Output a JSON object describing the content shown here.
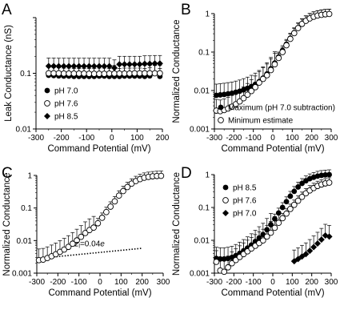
{
  "figure": {
    "chart_data": [
      {
        "panel_label": "A",
        "type": "scatter",
        "ylabel": "Leak Conductance (nS)",
        "xlabel": "Command Potential (mV)",
        "ylog": true,
        "ylim": [
          0.01,
          1
        ],
        "xlim": [
          -300,
          200
        ],
        "xticks": [
          "-300",
          "-200",
          "-100",
          "0",
          "100",
          "200"
        ],
        "yticks": [
          "0.01",
          "0.1"
        ],
        "legend": {
          "placement": "lower-left",
          "entries": [
            "pH 7.0",
            "pH 7.6",
            "pH 8.5"
          ]
        },
        "series": [
          {
            "name": "pH 7.0",
            "marker": "filled-circle",
            "x": [
              -250,
              -230,
              -210,
              -190,
              -170,
              -150,
              -130,
              -110,
              -90,
              -70,
              -50,
              -30,
              -10,
              10,
              30,
              50,
              70,
              90,
              110,
              130,
              150,
              170,
              190
            ],
            "y": [
              0.092,
              0.091,
              0.09,
              0.089,
              0.089,
              0.088,
              0.088,
              0.088,
              0.088,
              0.088,
              0.089,
              0.089,
              0.088,
              0.088,
              0.088,
              0.089,
              0.089,
              0.089,
              0.089,
              0.088,
              0.09,
              0.1,
              0.088
            ]
          },
          {
            "name": "pH 7.6",
            "marker": "open-circle",
            "x": [
              -250,
              -230,
              -210,
              -190,
              -170,
              -150,
              -130,
              -110,
              -90,
              -70,
              -50,
              -30,
              -10,
              10,
              30,
              50,
              70,
              90,
              110,
              130,
              150,
              170,
              190
            ],
            "y": [
              0.1,
              0.1,
              0.1,
              0.099,
              0.099,
              0.099,
              0.099,
              0.099,
              0.098,
              0.098,
              0.098,
              0.098,
              0.099,
              0.099,
              0.099,
              0.099,
              0.099,
              0.1,
              0.1,
              0.1,
              0.1,
              0.1,
              0.1
            ]
          },
          {
            "name": "pH 8.5",
            "marker": "filled-diamond",
            "x": [
              -250,
              -230,
              -210,
              -190,
              -170,
              -150,
              -130,
              -110,
              -90,
              -70,
              -50,
              -30,
              -10,
              10,
              30,
              50,
              70,
              90,
              110,
              130,
              150,
              170,
              190
            ],
            "y": [
              0.135,
              0.135,
              0.134,
              0.134,
              0.134,
              0.134,
              0.134,
              0.134,
              0.134,
              0.134,
              0.134,
              0.134,
              0.134,
              0.125,
              0.145,
              0.145,
              0.145,
              0.145,
              0.145,
              0.148,
              0.148,
              0.15,
              0.15
            ]
          }
        ]
      },
      {
        "panel_label": "B",
        "type": "scatter",
        "ylabel": "Normalized Conductance",
        "xlabel": "Command Potential (mV)",
        "ylog": true,
        "ylim": [
          0.001,
          1
        ],
        "xlim": [
          -300,
          300
        ],
        "xticks": [
          "-300",
          "-200",
          "-100",
          "0",
          "100",
          "200",
          "300"
        ],
        "yticks": [
          "0.001",
          "0.01",
          "0.1",
          "1"
        ],
        "legend": {
          "placement": "lower-right",
          "entries": [
            "Maximum (pH 7.0 subtraction)",
            "Minimum estimate"
          ]
        },
        "series": [
          {
            "name": "Maximum (pH 7.0 subtraction)",
            "marker": "filled-circle",
            "x": [
              -290,
              -270,
              -250,
              -230,
              -210,
              -190,
              -170,
              -150,
              -130,
              -110,
              -90,
              -70,
              -50,
              -30,
              -10,
              10,
              30,
              50,
              70,
              90,
              110,
              130,
              150,
              170,
              190,
              210,
              230,
              250,
              270,
              290
            ],
            "y": [
              0.0075,
              0.0077,
              0.0079,
              0.0082,
              0.0085,
              0.009,
              0.0096,
              0.0104,
              0.0114,
              0.0127,
              0.0145,
              0.017,
              0.021,
              0.027,
              0.037,
              0.052,
              0.075,
              0.11,
              0.16,
              0.23,
              0.32,
              0.43,
              0.55,
              0.66,
              0.76,
              0.84,
              0.9,
              0.94,
              0.97,
              0.98
            ]
          },
          {
            "name": "Minimum estimate",
            "marker": "open-circle",
            "x": [
              -290,
              -270,
              -250,
              -230,
              -210,
              -190,
              -170,
              -150,
              -130,
              -110,
              -90,
              -70,
              -50,
              -30,
              -10,
              10,
              30,
              50,
              70,
              90,
              110,
              130,
              150,
              170,
              190,
              210,
              230,
              250,
              270,
              290
            ],
            "y": [
              0.003,
              0.0029,
              0.0031,
              0.0034,
              0.0038,
              0.0044,
              0.0052,
              0.0063,
              0.0078,
              0.0097,
              0.0122,
              0.016,
              0.02,
              0.025,
              0.034,
              0.048,
              0.07,
              0.1,
              0.15,
              0.22,
              0.31,
              0.42,
              0.54,
              0.65,
              0.75,
              0.83,
              0.89,
              0.93,
              0.96,
              0.98
            ]
          }
        ]
      },
      {
        "panel_label": "C",
        "type": "scatter",
        "ylabel": "Normalized Conductance",
        "xlabel": "Command Potential (mV)",
        "ylog": true,
        "ylim": [
          0.001,
          1
        ],
        "xlim": [
          -300,
          300
        ],
        "xticks": [
          "-300",
          "-200",
          "-100",
          "0",
          "100",
          "200",
          "300"
        ],
        "yticks": [
          "0.001",
          "0.01",
          "0.1",
          "1"
        ],
        "annotation": {
          "text_main": "z",
          "text_sub": "l",
          "text_rest": "=0.04",
          "text_italic": "e"
        },
        "fit_line": {
          "style": "dotted",
          "x": [
            -300,
            200
          ],
          "y": [
            0.0028,
            0.0058
          ]
        },
        "series": [
          {
            "name": "",
            "marker": "open-circle",
            "x": [
              -290,
              -270,
              -250,
              -230,
              -210,
              -190,
              -170,
              -150,
              -130,
              -110,
              -90,
              -70,
              -50,
              -30,
              -10,
              10,
              30,
              50,
              70,
              90,
              110,
              130,
              150,
              170,
              190,
              210,
              230,
              250,
              270,
              290
            ],
            "y": [
              0.0025,
              0.0026,
              0.0029,
              0.0033,
              0.0038,
              0.0045,
              0.0053,
              0.0064,
              0.008,
              0.0101,
              0.013,
              0.017,
              0.021,
              0.025,
              0.034,
              0.05,
              0.075,
              0.11,
              0.16,
              0.24,
              0.33,
              0.44,
              0.56,
              0.67,
              0.77,
              0.85,
              0.9,
              0.94,
              0.96,
              0.97
            ]
          }
        ]
      },
      {
        "panel_label": "D",
        "type": "scatter",
        "ylabel": "Normalized Conductance",
        "xlabel": "Command Potential (mV)",
        "ylog": true,
        "ylim": [
          0.001,
          1
        ],
        "xlim": [
          -300,
          300
        ],
        "xticks": [
          "-300",
          "-200",
          "-100",
          "0",
          "100",
          "200",
          "300"
        ],
        "yticks": [
          "0.001",
          "0.01",
          "0.1",
          "1"
        ],
        "legend": {
          "placement": "top-left",
          "entries": [
            "pH 8.5",
            "pH 7.6",
            "pH 7.0"
          ]
        },
        "series": [
          {
            "name": "pH 8.5",
            "marker": "filled-circle",
            "x": [
              -290,
              -270,
              -250,
              -230,
              -210,
              -190,
              -170,
              -150,
              -130,
              -110,
              -90,
              -70,
              -50,
              -30,
              -10,
              10,
              30,
              50,
              70,
              90,
              110,
              130,
              150,
              170,
              190,
              210,
              230,
              250,
              270,
              290
            ],
            "y": [
              0.0028,
              0.0027,
              0.0027,
              0.0028,
              0.003,
              0.0034,
              0.004,
              0.0048,
              0.0058,
              0.0072,
              0.0092,
              0.0118,
              0.015,
              0.021,
              0.03,
              0.045,
              0.068,
              0.1,
              0.15,
              0.22,
              0.31,
              0.42,
              0.54,
              0.65,
              0.75,
              0.83,
              0.9,
              0.95,
              0.98,
              1.0
            ]
          },
          {
            "name": "pH 7.6",
            "marker": "open-circle",
            "x": [
              -290,
              -270,
              -250,
              -230,
              -210,
              -190,
              -170,
              -150,
              -130,
              -110,
              -90,
              -70,
              -50,
              -30,
              -10,
              10,
              30,
              50,
              70,
              90,
              110,
              130,
              150,
              170,
              190,
              210,
              230,
              250,
              270,
              290
            ],
            "y": [
              0.0022,
              0.0012,
              0.0011,
              0.0015,
              0.002,
              0.0025,
              0.0031,
              0.0038,
              0.0046,
              0.0056,
              0.0068,
              0.0082,
              0.0099,
              0.013,
              0.017,
              0.024,
              0.034,
              0.047,
              0.065,
              0.09,
              0.12,
              0.16,
              0.21,
              0.27,
              0.33,
              0.39,
              0.45,
              0.5,
              0.54,
              0.57
            ]
          },
          {
            "name": "pH 7.0",
            "marker": "filled-diamond",
            "x": [
              110,
              130,
              150,
              170,
              190,
              210,
              230,
              250,
              270,
              290
            ],
            "y": [
              0.0023,
              0.0027,
              0.0032,
              0.0038,
              0.0048,
              0.0062,
              0.008,
              0.0105,
              0.014,
              0.013
            ]
          }
        ]
      }
    ]
  }
}
